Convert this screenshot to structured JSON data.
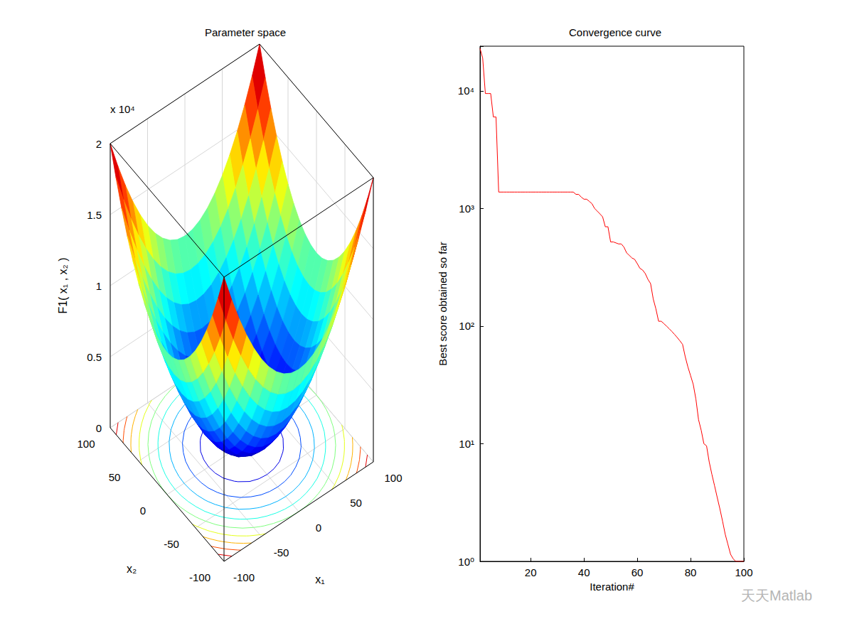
{
  "chart_data": [
    {
      "type": "surface",
      "title": "Parameter space",
      "x_label": "x₁",
      "y_label": "x₂",
      "z_label": "F1( x₁ , x₂ )",
      "z_exponent_label": "x 10⁴",
      "x": [
        -100,
        -90,
        -80,
        -70,
        -60,
        -50,
        -40,
        -30,
        -20,
        -10,
        0,
        10,
        20,
        30,
        40,
        50,
        60,
        70,
        80,
        90,
        100
      ],
      "y": [
        -100,
        -90,
        -80,
        -70,
        -60,
        -50,
        -40,
        -30,
        -20,
        -10,
        0,
        10,
        20,
        30,
        40,
        50,
        60,
        70,
        80,
        90,
        100
      ],
      "z": [
        [
          20000,
          18100,
          16400,
          14900,
          13600,
          12500,
          11600,
          10900,
          10400,
          10100,
          10000,
          10100,
          10400,
          10900,
          11600,
          12500,
          13600,
          14900,
          16400,
          18100,
          20000
        ],
        [
          18100,
          16200,
          14500,
          13000,
          11700,
          10600,
          9700,
          9000,
          8500,
          8200,
          8100,
          8200,
          8500,
          9000,
          9700,
          10600,
          11700,
          13000,
          14500,
          16200,
          18100
        ],
        [
          16400,
          14500,
          12800,
          11300,
          10000,
          8900,
          8000,
          7300,
          6800,
          6500,
          6400,
          6500,
          6800,
          7300,
          8000,
          8900,
          10000,
          11300,
          12800,
          14500,
          16400
        ],
        [
          14900,
          13000,
          11300,
          9800,
          8500,
          7400,
          6500,
          5800,
          5300,
          5000,
          4900,
          5000,
          5300,
          5800,
          6500,
          7400,
          8500,
          9800,
          11300,
          13000,
          14900
        ],
        [
          13600,
          11700,
          10000,
          8500,
          7200,
          6100,
          5200,
          4500,
          4000,
          3700,
          3600,
          3700,
          4000,
          4500,
          5200,
          6100,
          7200,
          8500,
          10000,
          11700,
          13600
        ],
        [
          12500,
          10600,
          8900,
          7400,
          6100,
          5000,
          4100,
          3400,
          2900,
          2600,
          2500,
          2600,
          2900,
          3400,
          4100,
          5000,
          6100,
          7400,
          8900,
          10600,
          12500
        ],
        [
          11600,
          9700,
          8000,
          6500,
          5200,
          4100,
          3200,
          2500,
          2000,
          1700,
          1600,
          1700,
          2000,
          2500,
          3200,
          4100,
          5200,
          6500,
          8000,
          9700,
          11600
        ],
        [
          10900,
          9000,
          7300,
          5800,
          4500,
          3400,
          2500,
          1800,
          1300,
          1000,
          900,
          1000,
          1300,
          1800,
          2500,
          3400,
          4500,
          5800,
          7300,
          9000,
          10900
        ],
        [
          10400,
          8500,
          6800,
          5300,
          4000,
          2900,
          2000,
          1300,
          800,
          500,
          400,
          500,
          800,
          1300,
          2000,
          2900,
          4000,
          5300,
          6800,
          8500,
          10400
        ],
        [
          10100,
          8200,
          6500,
          5000,
          3700,
          2600,
          1700,
          1000,
          500,
          200,
          100,
          200,
          500,
          1000,
          1700,
          2600,
          3700,
          5000,
          6500,
          8200,
          10100
        ],
        [
          10000,
          8100,
          6400,
          4900,
          3600,
          2500,
          1600,
          900,
          400,
          100,
          0,
          100,
          400,
          900,
          1600,
          2500,
          3600,
          4900,
          6400,
          8100,
          10000
        ],
        [
          10100,
          8200,
          6500,
          5000,
          3700,
          2600,
          1700,
          1000,
          500,
          200,
          100,
          200,
          500,
          1000,
          1700,
          2600,
          3700,
          5000,
          6500,
          8200,
          10100
        ],
        [
          10400,
          8500,
          6800,
          5300,
          4000,
          2900,
          2000,
          1300,
          800,
          500,
          400,
          500,
          800,
          1300,
          2000,
          2900,
          4000,
          5300,
          6800,
          8500,
          10400
        ],
        [
          10900,
          9000,
          7300,
          5800,
          4500,
          3400,
          2500,
          1800,
          1300,
          1000,
          900,
          1000,
          1300,
          1800,
          2500,
          3400,
          4500,
          5800,
          7300,
          9000,
          10900
        ],
        [
          11600,
          9700,
          8000,
          6500,
          5200,
          4100,
          3200,
          2500,
          2000,
          1700,
          1600,
          1700,
          2000,
          2500,
          3200,
          4100,
          5200,
          6500,
          8000,
          9700,
          11600
        ],
        [
          12500,
          10600,
          8900,
          7400,
          6100,
          5000,
          4100,
          3400,
          2900,
          2600,
          2500,
          2600,
          2900,
          3400,
          4100,
          5000,
          6100,
          7400,
          8900,
          10600,
          12500
        ],
        [
          13600,
          11700,
          10000,
          8500,
          7200,
          6100,
          5200,
          4500,
          4000,
          3700,
          3600,
          3700,
          4000,
          4500,
          5200,
          6100,
          7200,
          8500,
          10000,
          11700,
          13600
        ],
        [
          14900,
          13000,
          11300,
          9800,
          8500,
          7400,
          6500,
          5800,
          5300,
          5000,
          4900,
          5000,
          5300,
          5800,
          6500,
          7400,
          8500,
          9800,
          11300,
          13000,
          14900
        ],
        [
          16400,
          14500,
          12800,
          11300,
          10000,
          8900,
          8000,
          7300,
          6800,
          6500,
          6400,
          6500,
          6800,
          7300,
          8000,
          8900,
          10000,
          11300,
          12800,
          14500,
          16400
        ],
        [
          18100,
          16200,
          14500,
          13000,
          11700,
          10600,
          9700,
          9000,
          8500,
          8200,
          8100,
          8200,
          8500,
          9000,
          9700,
          10600,
          11700,
          13000,
          14500,
          16200,
          18100
        ],
        [
          20000,
          18100,
          16400,
          14900,
          13600,
          12500,
          11600,
          10900,
          10400,
          10100,
          10000,
          10100,
          10400,
          10900,
          11600,
          12500,
          13600,
          14900,
          16400,
          18100,
          20000
        ]
      ],
      "contour_levels": [
        2000,
        4000,
        6000,
        8000,
        10000,
        12000,
        14000,
        16000,
        18000
      ],
      "xlim": [
        -100,
        100
      ],
      "xticks": [
        -100,
        -50,
        0,
        50,
        100
      ],
      "ylim": [
        -100,
        100
      ],
      "yticks": [
        -100,
        -50,
        0,
        50,
        100
      ],
      "zlim": [
        0,
        20000
      ],
      "zticks": [
        {
          "value": 0,
          "label": "0"
        },
        {
          "value": 5000,
          "label": "0.5"
        },
        {
          "value": 10000,
          "label": "1"
        },
        {
          "value": 15000,
          "label": "1.5"
        },
        {
          "value": 20000,
          "label": "2"
        }
      ],
      "grid": true
    },
    {
      "type": "line",
      "title": "Convergence curve",
      "x_label": "Iteration#",
      "y_label": "Best score obtained so far",
      "x": [
        1,
        2,
        3,
        4,
        5,
        6,
        7,
        8,
        9,
        10,
        11,
        12,
        13,
        14,
        15,
        16,
        17,
        18,
        19,
        20,
        21,
        22,
        23,
        24,
        25,
        26,
        27,
        28,
        29,
        30,
        31,
        32,
        33,
        34,
        35,
        36,
        37,
        38,
        39,
        40,
        41,
        42,
        43,
        44,
        45,
        46,
        47,
        48,
        49,
        50,
        51,
        52,
        53,
        54,
        55,
        56,
        57,
        58,
        59,
        60,
        61,
        62,
        63,
        64,
        65,
        66,
        67,
        68,
        69,
        70,
        71,
        72,
        73,
        74,
        75,
        76,
        77,
        78,
        79,
        80,
        81,
        82,
        83,
        84,
        85,
        86,
        87,
        88,
        89,
        90,
        91,
        92,
        93,
        94,
        95,
        96,
        97,
        98,
        99,
        100
      ],
      "values": [
        23000,
        19000,
        9500,
        9500,
        9500,
        6000,
        6000,
        1380,
        1380,
        1380,
        1380,
        1380,
        1380,
        1380,
        1380,
        1380,
        1380,
        1380,
        1380,
        1380,
        1380,
        1380,
        1380,
        1380,
        1380,
        1380,
        1380,
        1380,
        1380,
        1380,
        1380,
        1380,
        1380,
        1380,
        1380,
        1380,
        1320,
        1320,
        1250,
        1200,
        1200,
        1150,
        1100,
        1000,
        950,
        900,
        850,
        700,
        700,
        520,
        520,
        510,
        500,
        500,
        470,
        420,
        400,
        380,
        370,
        340,
        310,
        300,
        280,
        250,
        230,
        170,
        140,
        110,
        110,
        105,
        100,
        95,
        90,
        85,
        80,
        75,
        70,
        55,
        45,
        38,
        32,
        24,
        16,
        13,
        10,
        9.6,
        7,
        5.5,
        4.4,
        3.5,
        2.8,
        2.2,
        1.7,
        1.4,
        1.15,
        1.05,
        1,
        1,
        1,
        1
      ],
      "color": "#ff0000",
      "xlim": [
        1,
        100
      ],
      "xticks": [
        20,
        40,
        60,
        80,
        100
      ],
      "ylim": [
        1,
        24000
      ],
      "yticks": [
        {
          "value": 1,
          "label": "10⁰"
        },
        {
          "value": 10,
          "label": "10¹"
        },
        {
          "value": 100,
          "label": "10²"
        },
        {
          "value": 1000,
          "label": "10³"
        },
        {
          "value": 10000,
          "label": "10⁴"
        }
      ],
      "log": "y",
      "grid": false
    }
  ],
  "watermark": "天天Matlab"
}
